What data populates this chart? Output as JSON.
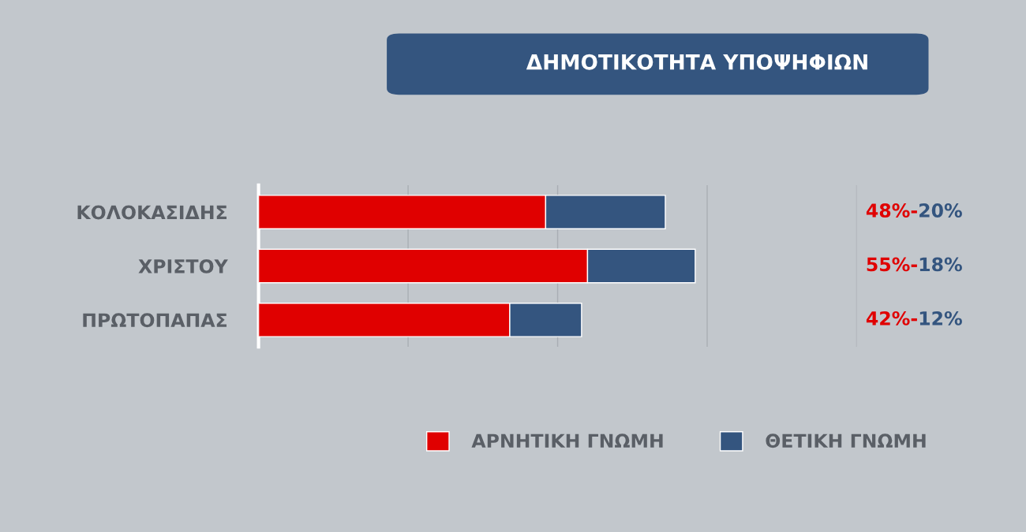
{
  "chart_data": {
    "type": "bar",
    "orientation": "horizontal",
    "stacked": true,
    "title": "ΔΗΜΟΤΙΚΟΤΗΤΑ ΥΠΟΨΗΦΙΩΝ",
    "categories": [
      "ΚΟΛΟΚΑΣΙΔΗΣ",
      "ΧΡΙΣΤΟΥ",
      "ΠΡΩΤΟΠΑΠΑΣ"
    ],
    "series": [
      {
        "name": "ΑΡΝΗΤΙΚΗ ΓΝΩΜΗ",
        "color": "#e00000",
        "values": [
          48,
          55,
          42
        ],
        "value_labels": [
          "48%-",
          "55%-",
          "42%-"
        ]
      },
      {
        "name": "ΘΕΤΙΚΗ ΓΝΩΜΗ",
        "color": "#34557f",
        "values": [
          20,
          18,
          12
        ],
        "value_labels": [
          "20%",
          "18%",
          "12%"
        ]
      }
    ],
    "xlim": [
      0,
      100
    ],
    "xticks": [
      0,
      25,
      50,
      75,
      100
    ],
    "grid": "x",
    "tick_labels": "y",
    "legend": "bottom right"
  }
}
